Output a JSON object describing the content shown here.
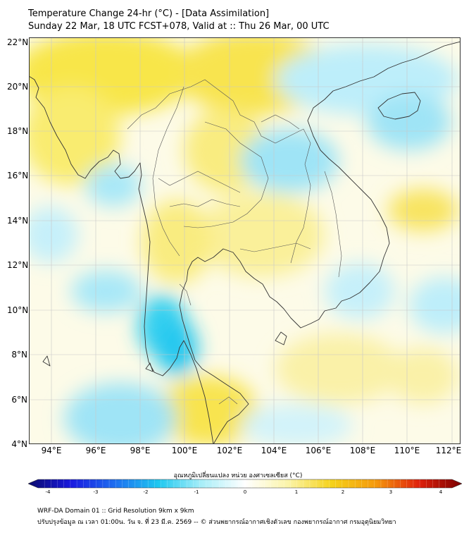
{
  "header": {
    "title": "Temperature Change 24-hr (°C) - [Data Assimilation]",
    "subtitle": "Sunday 22 Mar, 18 UTC FCST+078, Valid at :: Thu 26 Mar, 00 UTC"
  },
  "map": {
    "lat_labels": [
      "22°N",
      "20°N",
      "18°N",
      "16°N",
      "14°N",
      "12°N",
      "10°N",
      "8°N",
      "6°N",
      "4°N"
    ],
    "lon_labels": [
      "94°E",
      "96°E",
      "98°E",
      "100°E",
      "102°E",
      "104°E",
      "106°E",
      "108°E",
      "110°E",
      "112°E"
    ],
    "extent": {
      "lon_min": 93,
      "lon_max": 112.4,
      "lat_min": 4,
      "lat_max": 22.2
    }
  },
  "colorbar": {
    "title": "อุณหภูมิเปลี่ยนแปลง หน่วย องศาเซลเซียส (°C)",
    "ticks": [
      "-4",
      "-3",
      "-2",
      "-1",
      "0",
      "1",
      "2",
      "3",
      "4"
    ],
    "min": -4,
    "max": 4,
    "colors": [
      "#0b0b6e",
      "#1a1ae0",
      "#1e6ff0",
      "#1ec8f0",
      "#a8eef8",
      "#ffffff",
      "#fbf4a8",
      "#f5d21a",
      "#f59a0c",
      "#e0220c",
      "#7a0000"
    ]
  },
  "footer": {
    "line1": "WRF-DA Domain 01 :: Grid Resolution 9km x 9km",
    "line2": "ปรับปรุงข้อมูล ณ เวลา 01:00น. วัน จ. ที่ 23 มี.ค. 2569 -- © ส่วนพยากรณ์อากาศเชิงตัวเลข กองพยากรณ์อากาศ กรมอุตุนิยมวิทยา"
  }
}
